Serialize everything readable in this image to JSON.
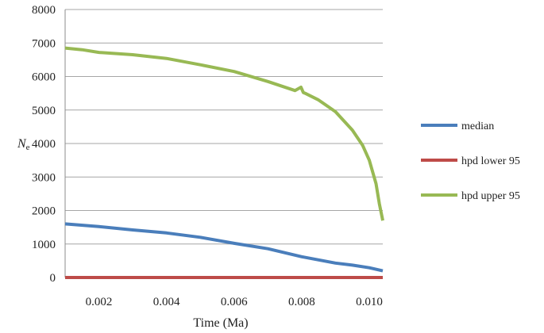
{
  "chart_data": {
    "type": "line",
    "title": "",
    "xlabel": "Time (Ma)",
    "ylabel_main": "N",
    "ylabel_sub": "e",
    "xlim": [
      0.001,
      0.0104
    ],
    "ylim": [
      0,
      8000
    ],
    "x_ticks": [
      0.002,
      0.004,
      0.006,
      0.008,
      0.01
    ],
    "x_tick_labels": [
      "0.002",
      "0.004",
      "0.006",
      "0.008",
      "0.010"
    ],
    "y_ticks": [
      0,
      1000,
      2000,
      3000,
      4000,
      5000,
      6000,
      7000,
      8000
    ],
    "y_tick_labels": [
      "0",
      "1000",
      "2000",
      "3000",
      "4000",
      "5000",
      "6000",
      "7000",
      "8000"
    ],
    "grid": "horizontal",
    "legend_position": "right",
    "series": [
      {
        "name": "median",
        "color": "#4a7ebb",
        "x": [
          0.001,
          0.002,
          0.003,
          0.004,
          0.005,
          0.006,
          0.007,
          0.008,
          0.009,
          0.0095,
          0.01,
          0.0104
        ],
        "y": [
          1600,
          1520,
          1420,
          1330,
          1200,
          1020,
          860,
          620,
          430,
          370,
          290,
          200
        ]
      },
      {
        "name": "hpd lower 95",
        "color": "#be4b48",
        "x": [
          0.001,
          0.0104
        ],
        "y": [
          0,
          0
        ]
      },
      {
        "name": "hpd upper 95",
        "color": "#98b954",
        "x": [
          0.001,
          0.0015,
          0.002,
          0.003,
          0.004,
          0.005,
          0.006,
          0.007,
          0.0078,
          0.00798,
          0.00805,
          0.0081,
          0.0085,
          0.009,
          0.0095,
          0.0098,
          0.01,
          0.0102,
          0.0103,
          0.0104
        ],
        "y": [
          6850,
          6800,
          6720,
          6650,
          6540,
          6350,
          6150,
          5850,
          5580,
          5680,
          5520,
          5500,
          5300,
          4950,
          4400,
          3950,
          3500,
          2800,
          2200,
          1700
        ]
      }
    ]
  }
}
